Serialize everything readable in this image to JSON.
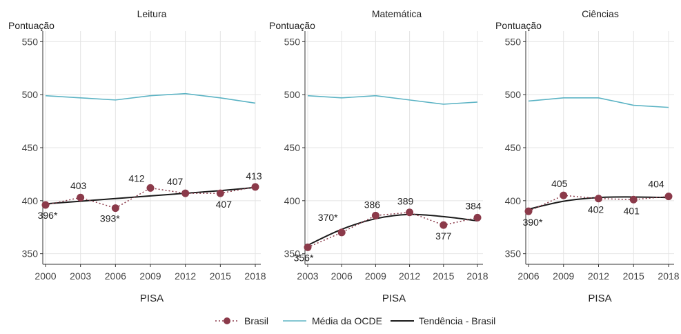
{
  "colors": {
    "brasil": "#8b3a4a",
    "ocde": "#5bb3c4",
    "trend": "#1a1a1a",
    "grid": "#e4e4e4",
    "axis": "#333333"
  },
  "legend": {
    "brasil": "Brasil",
    "ocde": "Média da OCDE",
    "trend": "Tendência - Brasil"
  },
  "chart_data": [
    {
      "type": "line",
      "title": "Leitura",
      "ylabel": "Pontuação",
      "xlabel": "PISA",
      "ylim": [
        340,
        560
      ],
      "yticks": [
        350,
        400,
        450,
        500,
        550
      ],
      "x": [
        2000,
        2003,
        2006,
        2009,
        2012,
        2015,
        2018
      ],
      "series": [
        {
          "name": "Brasil",
          "values": [
            396,
            403,
            393,
            412,
            407,
            407,
            413
          ],
          "labels": [
            "396*",
            "403",
            "393*",
            "412",
            "407",
            "407",
            "413"
          ]
        },
        {
          "name": "Média da OCDE",
          "values": [
            499,
            497,
            495,
            499,
            501,
            497,
            492
          ]
        },
        {
          "name": "Tendência - Brasil",
          "values": [
            397,
            399.5,
            402,
            404.5,
            407,
            409.5,
            412.5
          ]
        }
      ]
    },
    {
      "type": "line",
      "title": "Matemática",
      "ylabel": "Pontuação",
      "xlabel": "PISA",
      "ylim": [
        340,
        560
      ],
      "yticks": [
        350,
        400,
        450,
        500,
        550
      ],
      "x": [
        2003,
        2006,
        2009,
        2012,
        2015,
        2018
      ],
      "series": [
        {
          "name": "Brasil",
          "values": [
            356,
            370,
            386,
            389,
            377,
            384
          ],
          "labels": [
            "356*",
            "370*",
            "386",
            "389",
            "377",
            "384"
          ]
        },
        {
          "name": "Média da OCDE",
          "values": [
            499,
            497,
            499,
            495,
            491,
            493
          ]
        },
        {
          "name": "Tendência - Brasil",
          "values": [
            358,
            373,
            383,
            387,
            385,
            381
          ]
        }
      ]
    },
    {
      "type": "line",
      "title": "Ciências",
      "ylabel": "Pontuação",
      "xlabel": "PISA",
      "ylim": [
        340,
        560
      ],
      "yticks": [
        350,
        400,
        450,
        500,
        550
      ],
      "x": [
        2006,
        2009,
        2012,
        2015,
        2018
      ],
      "series": [
        {
          "name": "Brasil",
          "values": [
            390,
            405,
            402,
            401,
            404
          ],
          "labels": [
            "390*",
            "405",
            "402",
            "401",
            "404"
          ]
        },
        {
          "name": "Média da OCDE",
          "values": [
            494,
            497,
            497,
            490,
            488
          ]
        },
        {
          "name": "Tendência - Brasil",
          "values": [
            392,
            399.5,
            403,
            403.5,
            403
          ]
        }
      ]
    }
  ]
}
